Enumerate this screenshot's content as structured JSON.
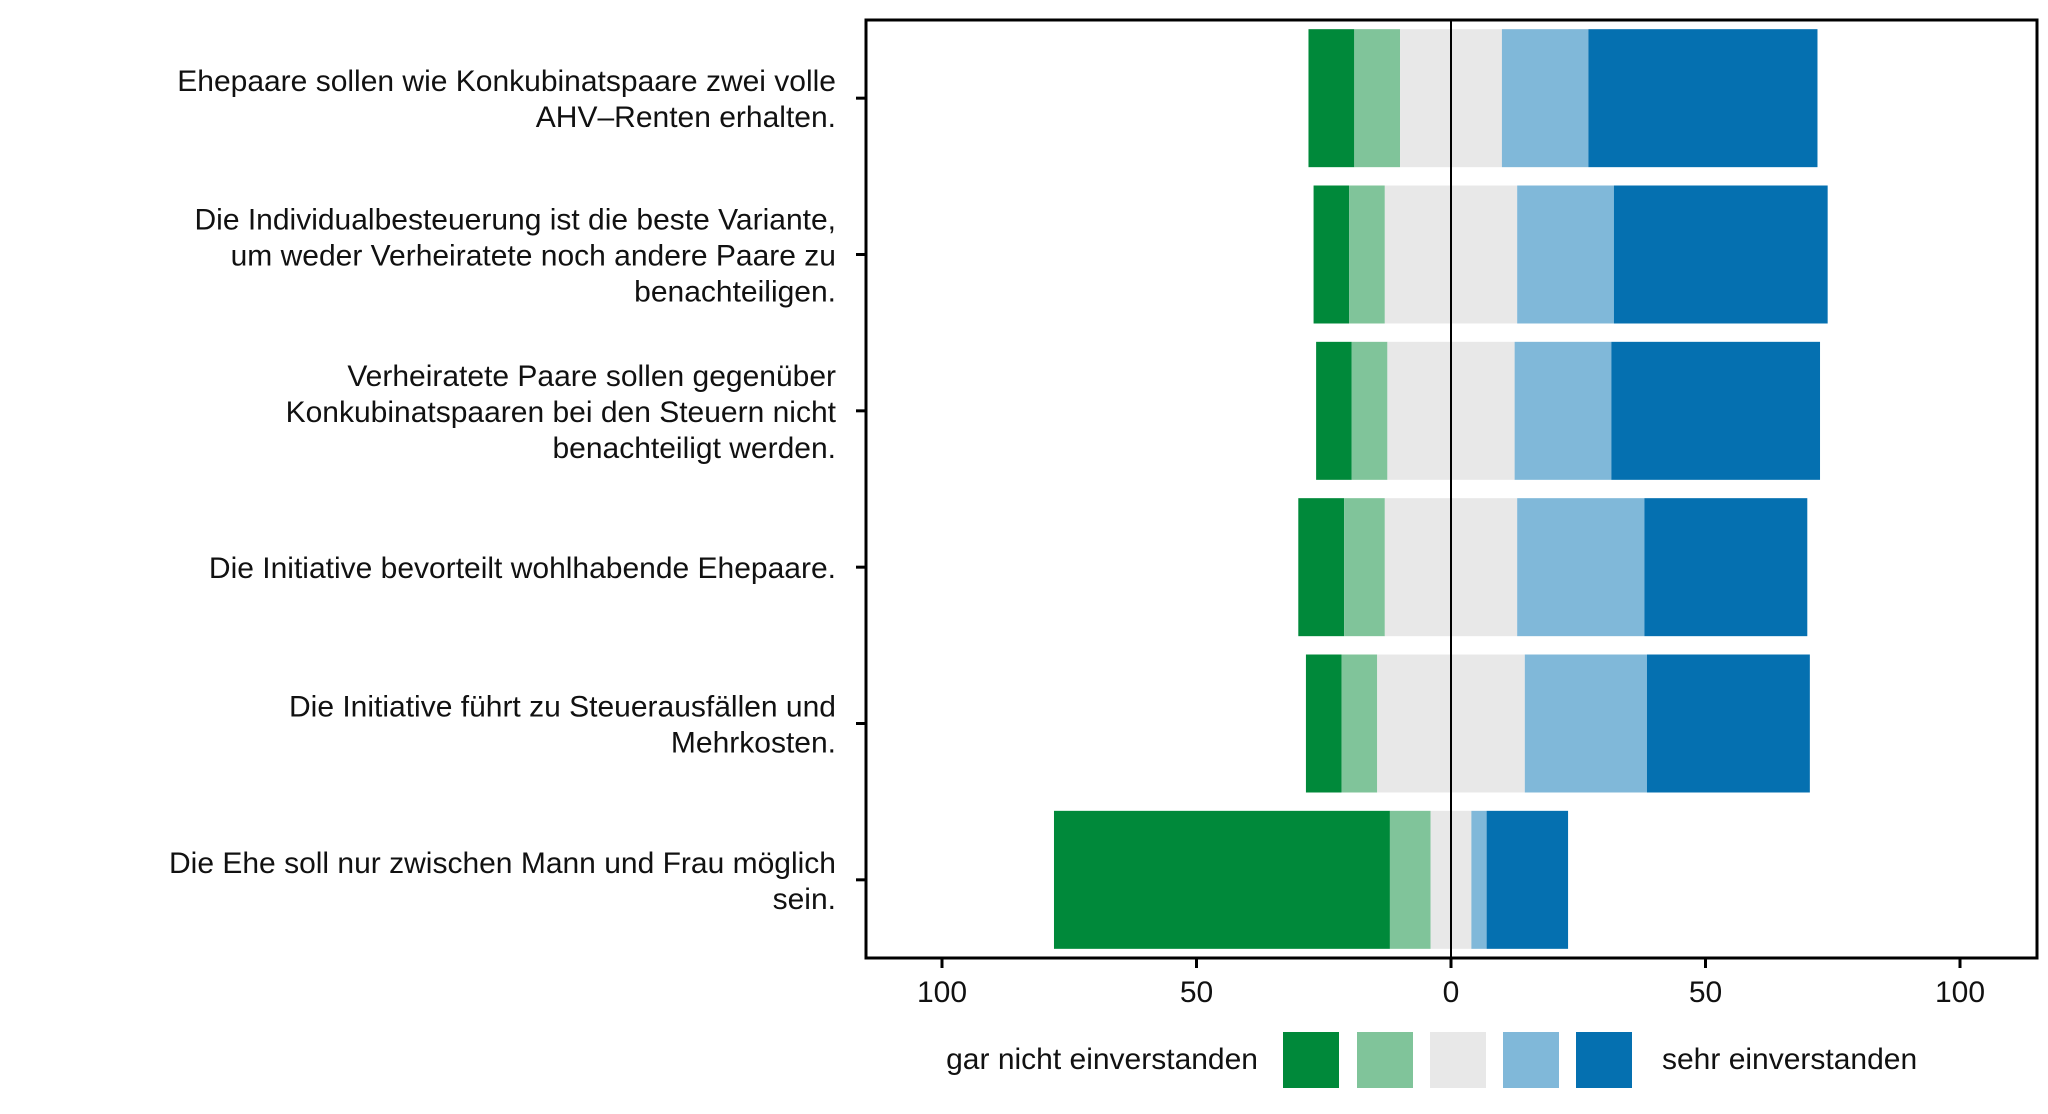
{
  "chart_data": {
    "type": "bar",
    "orientation": "horizontal",
    "stacked": "diverging",
    "categories": [
      [
        "Ehepaare sollen wie Konkubinatspaare zwei volle",
        "AHV–Renten erhalten."
      ],
      [
        "Die Individualbesteuerung ist die beste Variante,",
        "um weder Verheiratete noch andere Paare zu",
        "benachteiligen."
      ],
      [
        "Verheiratete Paare sollen gegenüber",
        "Konkubinatspaaren bei den Steuern nicht",
        "benachteiligt werden."
      ],
      [
        "Die Initiative bevorteilt wohlhabende Ehepaare."
      ],
      [
        "Die Initiative führt zu Steuerausfällen und",
        "Mehrkosten."
      ],
      [
        "Die Ehe soll nur zwischen Mann und Frau möglich",
        "sein."
      ]
    ],
    "series": [
      {
        "name": "",
        "color": "#00893a",
        "values": [
          9,
          7,
          7,
          9,
          7,
          66
        ]
      },
      {
        "name": "",
        "color": "#80c49a",
        "values": [
          9,
          7,
          7,
          8,
          7,
          8
        ]
      },
      {
        "name": "",
        "color": "#e8e8e8",
        "values": [
          20,
          26,
          25,
          26,
          29,
          8
        ]
      },
      {
        "name": "",
        "color": "#80b8d9",
        "values": [
          17,
          19,
          19,
          25,
          24,
          3
        ]
      },
      {
        "name": "",
        "color": "#0570b0",
        "values": [
          45,
          42,
          41,
          32,
          32,
          16
        ]
      }
    ],
    "xlim": [
      -100,
      100
    ],
    "x_ticks": [
      -100,
      -50,
      0,
      50,
      100
    ],
    "x_tick_labels": [
      "100",
      "50",
      "0",
      "50",
      "100"
    ],
    "grid": false,
    "legend": {
      "placement": "bottom",
      "left_label": "gar nicht einverstanden",
      "right_label": "sehr einverstanden"
    }
  }
}
